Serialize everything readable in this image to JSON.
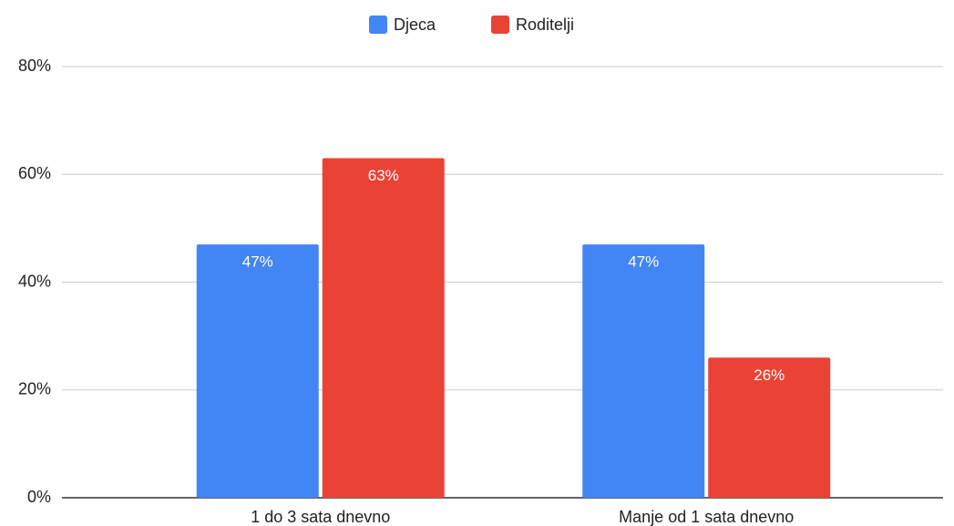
{
  "chart_data": {
    "type": "bar",
    "categories": [
      "1 do 3 sata dnevno",
      "Manje od 1 sata dnevno"
    ],
    "series": [
      {
        "name": "Djeca",
        "color": "#4285f4",
        "values": [
          47,
          47
        ],
        "value_labels": [
          "47%",
          "47%"
        ]
      },
      {
        "name": "Roditelji",
        "color": "#ea4335",
        "values": [
          63,
          26
        ],
        "value_labels": [
          "63%",
          "26%"
        ]
      }
    ],
    "ylim": [
      0,
      80
    ],
    "yticks": [
      {
        "value": 0,
        "label": "0%"
      },
      {
        "value": 20,
        "label": "20%"
      },
      {
        "value": 40,
        "label": "40%"
      },
      {
        "value": 60,
        "label": "60%"
      },
      {
        "value": 80,
        "label": "80%"
      }
    ],
    "grid": true,
    "legend": "top"
  }
}
